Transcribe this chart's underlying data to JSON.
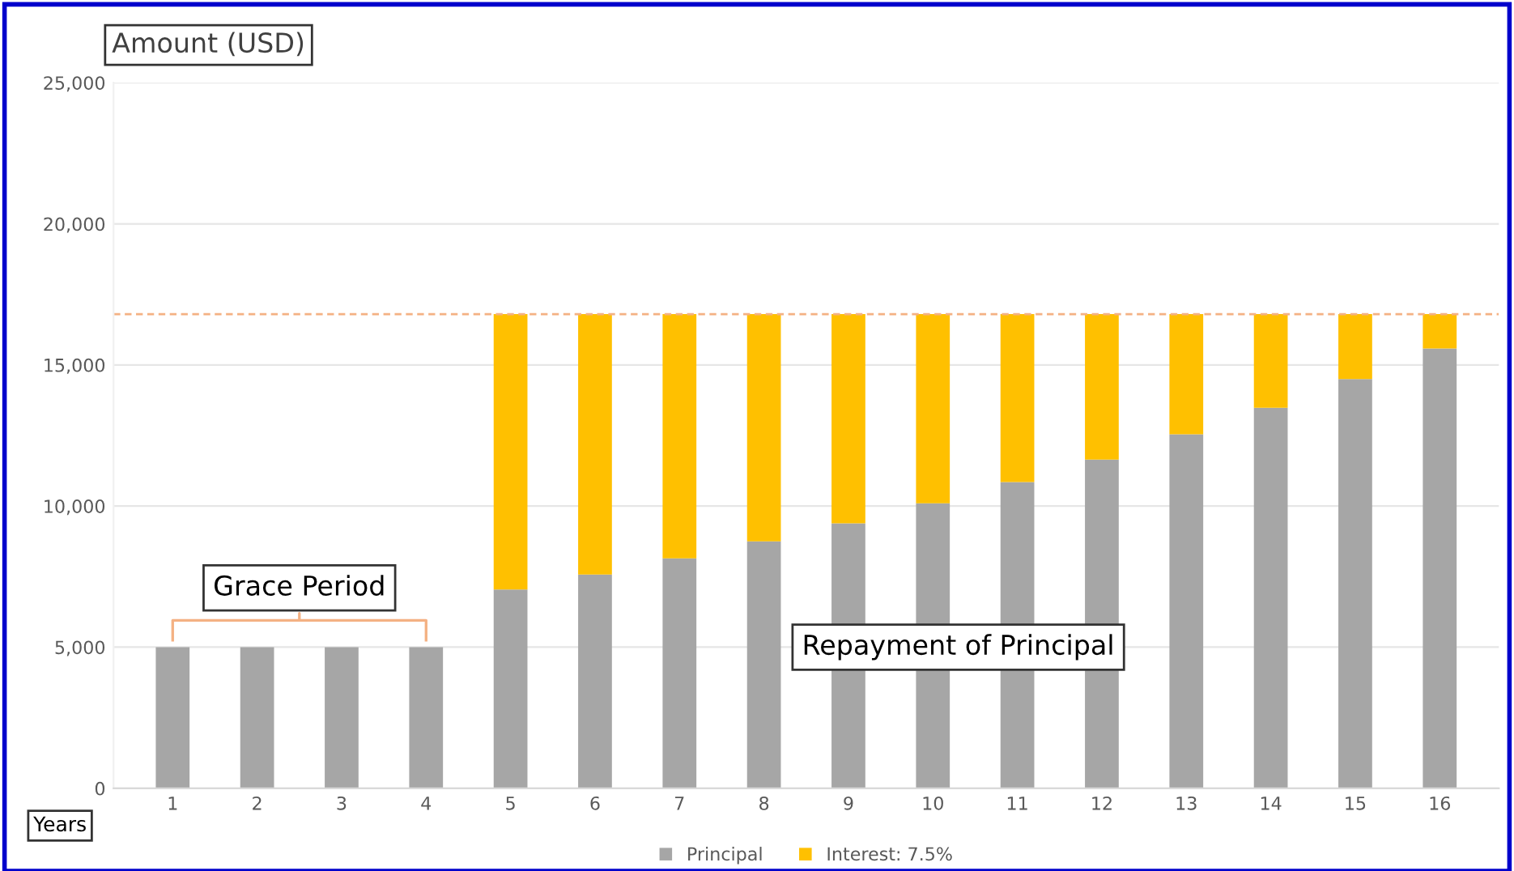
{
  "chart_data": {
    "type": "bar",
    "stacked": true,
    "ylabel": "Amount (USD)",
    "xlabel": "Years",
    "categories": [
      "1",
      "2",
      "3",
      "4",
      "5",
      "6",
      "7",
      "8",
      "9",
      "10",
      "11",
      "12",
      "13",
      "14",
      "15",
      "16"
    ],
    "series": [
      {
        "name": "Principal",
        "color": "#a6a6a6",
        "values": [
          5000,
          5000,
          5000,
          5000,
          7040,
          7570,
          8150,
          8750,
          9390,
          10100,
          10850,
          11650,
          12540,
          13480,
          14500,
          15580
        ]
      },
      {
        "name": "Interest: 7.5%",
        "color": "#ffc000",
        "values": [
          0,
          0,
          0,
          0,
          9760,
          9230,
          8650,
          8050,
          7410,
          6700,
          5950,
          5150,
          4260,
          3320,
          2300,
          1220
        ]
      }
    ],
    "ylim": [
      0,
      25000
    ],
    "yticks": [
      {
        "value": 0,
        "label": "0"
      },
      {
        "value": 5000,
        "label": "5,000"
      },
      {
        "value": 10000,
        "label": "10,000"
      },
      {
        "value": 15000,
        "label": "15,000"
      },
      {
        "value": 20000,
        "label": "20,000"
      },
      {
        "value": 25000,
        "label": "25,000"
      }
    ],
    "ref_lines": [
      {
        "axis": "y",
        "value": 16800,
        "label": null,
        "color": "#f4b183",
        "line_style": "dashed"
      }
    ],
    "annotations": [
      "Grace Period",
      "Repayment of Principal"
    ],
    "grid": "y",
    "legend": "bottom"
  }
}
